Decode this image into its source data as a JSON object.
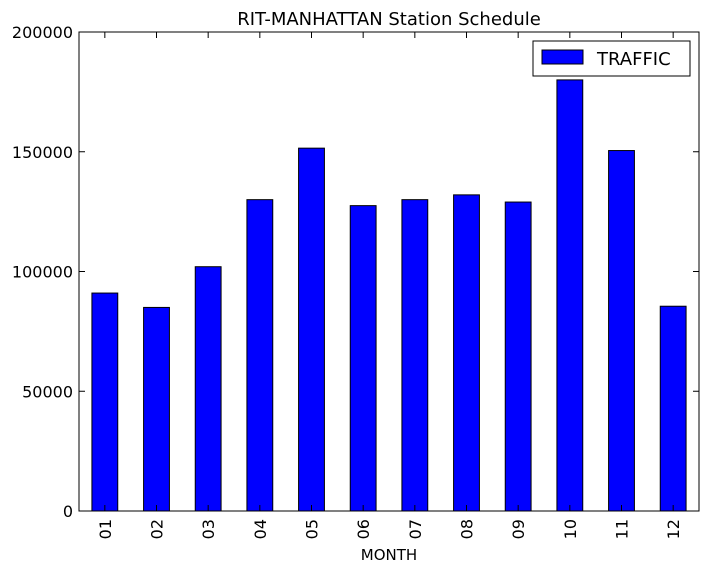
{
  "chart_data": {
    "type": "bar",
    "title": "RIT-MANHATTAN Station Schedule",
    "xlabel": "MONTH",
    "ylabel": "",
    "categories": [
      "01",
      "02",
      "03",
      "04",
      "05",
      "06",
      "07",
      "08",
      "09",
      "10",
      "11",
      "12"
    ],
    "series": [
      {
        "name": "TRAFFIC",
        "values": [
          91000,
          85000,
          102000,
          130000,
          151500,
          127500,
          130000,
          132000,
          129000,
          180000,
          150500,
          85500
        ]
      }
    ],
    "ylim": [
      0,
      200000
    ],
    "yticks": [
      0,
      50000,
      100000,
      150000,
      200000
    ],
    "ytick_labels": [
      "0",
      "50000",
      "100000",
      "150000",
      "200000"
    ],
    "grid": false,
    "legend_position": "top-right",
    "colors": {
      "bar": "#0000ff",
      "edge": "#000000",
      "axes": "#000000",
      "background": "#ffffff"
    }
  }
}
